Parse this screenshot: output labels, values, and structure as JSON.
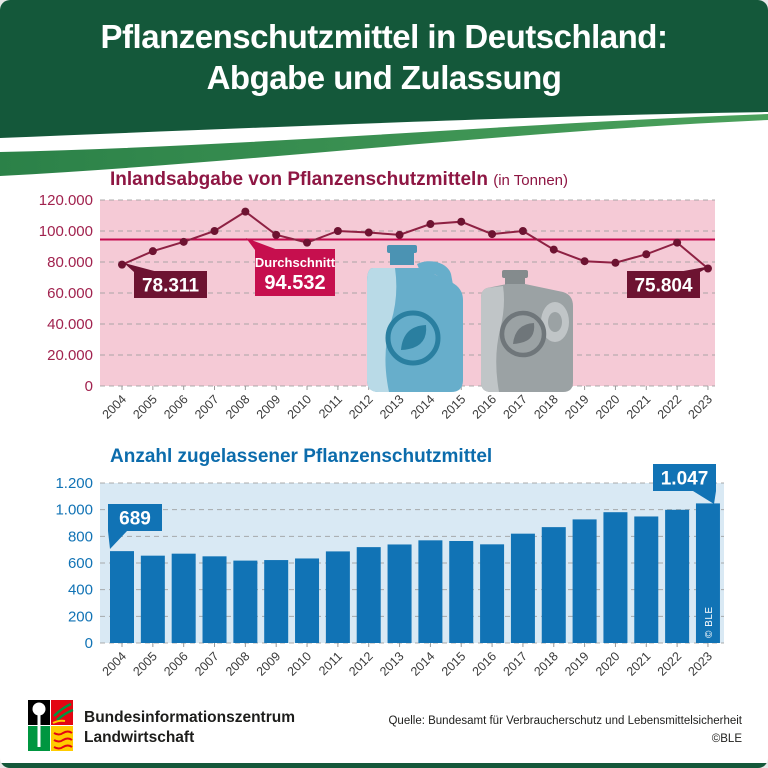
{
  "header": {
    "title_line1": "Pflanzenschutzmittel in Deutschland:",
    "title_line2": "Abgabe und Zulassung"
  },
  "colors": {
    "header_green": "#14583a",
    "stripe_green_dark": "#2b8148",
    "stripe_green_light": "#4ba15c",
    "pink_bg": "#f5cad6",
    "title_red": "#8e1643",
    "tick_red": "#a1224e",
    "line_red": "#8e2143",
    "dot_red": "#6d1331",
    "avg_line_red": "#c40a4e",
    "dark_label_box": "#6d1331",
    "avg_label_box": "#c60f4e",
    "blue_bar": "#1173b5",
    "title_blue": "#0c6cac",
    "light_blue_bg": "#d9e9f4",
    "year_label_gray": "#3b3b3b",
    "gridline_gray": "#9e9e9e"
  },
  "chart_data": [
    {
      "type": "line",
      "title": "Inlandsabgabe von Pflanzenschutzmitteln",
      "title_suffix": "(in Tonnen)",
      "x": [
        2004,
        2005,
        2006,
        2007,
        2008,
        2009,
        2010,
        2011,
        2012,
        2013,
        2014,
        2015,
        2016,
        2017,
        2018,
        2019,
        2020,
        2021,
        2022,
        2023
      ],
      "values": [
        78311,
        87000,
        93000,
        100000,
        112500,
        97500,
        92500,
        100000,
        99000,
        97500,
        104500,
        106000,
        98000,
        100000,
        88000,
        80500,
        79500,
        85000,
        92500,
        75804
      ],
      "average": 94532,
      "ylim": [
        0,
        120000
      ],
      "ytick_step": 20000,
      "ytick_labels": [
        "120.000",
        "100.000",
        "80.000",
        "60.000",
        "40.000",
        "20.000",
        "0"
      ],
      "grid": "dashed",
      "annotations": {
        "first_label": "78.311",
        "avg_title": "Durchschnitt",
        "avg_label": "94.532",
        "last_label": "75.804"
      }
    },
    {
      "type": "bar",
      "title": "Anzahl zugelassener Pflanzenschutzmittel",
      "x": [
        2004,
        2005,
        2006,
        2007,
        2008,
        2009,
        2010,
        2011,
        2012,
        2013,
        2014,
        2015,
        2016,
        2017,
        2018,
        2019,
        2020,
        2021,
        2022,
        2023
      ],
      "values": [
        689,
        655,
        670,
        650,
        618,
        622,
        634,
        687,
        719,
        739,
        770,
        765,
        740,
        820,
        869,
        927,
        981,
        949,
        999,
        1047
      ],
      "ylim": [
        0,
        1200
      ],
      "ytick_step": 200,
      "ytick_labels": [
        "1.200",
        "1.000",
        "800",
        "600",
        "400",
        "200",
        "0"
      ],
      "grid": "dashed",
      "annotations": {
        "first_label": "689",
        "last_label": "1.047"
      },
      "watermark": "© BLE"
    }
  ],
  "footer": {
    "org_line1": "Bundesinformationszentrum",
    "org_line2": "Landwirtschaft",
    "source": "Quelle: Bundesamt für Verbraucherschutz und Lebensmittelsicherheit",
    "copyright": "©BLE"
  }
}
